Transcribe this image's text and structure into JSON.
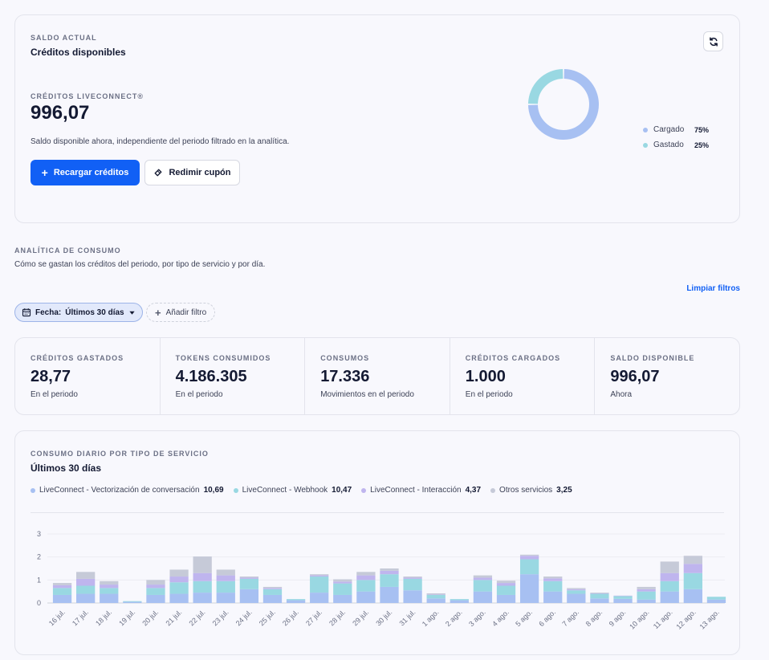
{
  "balance": {
    "overline": "SALDO ACTUAL",
    "title": "Créditos disponibles",
    "credits_label": "CRÉDITOS LIVECONNECT®",
    "credits_value": "996,07",
    "description": "Saldo disponible ahora, independiente del periodo filtrado en la analítica.",
    "recharge_label": "Recargar créditos",
    "coupon_label": "Redimir cupón",
    "donut": [
      {
        "label": "Cargado",
        "pct": "75%",
        "value": 75,
        "color": "#a7c0f2"
      },
      {
        "label": "Gastado",
        "pct": "25%",
        "value": 25,
        "color": "#99d8e2"
      }
    ]
  },
  "analytics": {
    "overline": "ANALÍTICA DE CONSUMO",
    "description": "Cómo se gastan los créditos del periodo, por tipo de servicio y por día.",
    "clear_filters": "Limpiar filtros",
    "date_filter_key": "Fecha:",
    "date_filter_value": "Últimos 30 días",
    "add_filter": "Añadir filtro"
  },
  "stats": [
    {
      "label": "CRÉDITOS GASTADOS",
      "value": "28,77",
      "caption": "En el periodo"
    },
    {
      "label": "TOKENS CONSUMIDOS",
      "value": "4.186.305",
      "caption": "En el periodo"
    },
    {
      "label": "CONSUMOS",
      "value": "17.336",
      "caption": "Movimientos en el periodo"
    },
    {
      "label": "CRÉDITOS CARGADOS",
      "value": "1.000",
      "caption": "En el periodo"
    },
    {
      "label": "SALDO DISPONIBLE",
      "value": "996,07",
      "caption": "Ahora"
    }
  ],
  "chart_card": {
    "overline": "CONSUMO DIARIO POR TIPO DE SERVICIO",
    "title": "Últimos 30 días",
    "legend": [
      {
        "name": "LiveConnect - Vectorización de conversación",
        "total": "10,69",
        "color": "#a7c0f2"
      },
      {
        "name": "LiveConnect - Webhook",
        "total": "10,47",
        "color": "#99d8e2"
      },
      {
        "name": "LiveConnect - Interacción",
        "total": "4,37",
        "color": "#bfb5ee"
      },
      {
        "name": "Otros servicios",
        "total": "3,25",
        "color": "#c6cad8"
      }
    ]
  },
  "chart_data": {
    "type": "bar",
    "stacked": true,
    "categories": [
      "16 jul.",
      "17 jul.",
      "18 jul.",
      "19 jul.",
      "20 jul.",
      "21 jul.",
      "22 jul.",
      "23 jul.",
      "24 jul.",
      "25 jul.",
      "26 jul.",
      "27 jul.",
      "28 jul.",
      "29 jul.",
      "30 jul.",
      "31 jul.",
      "1 ago.",
      "2 ago.",
      "3 ago.",
      "4 ago.",
      "5 ago.",
      "6 ago.",
      "7 ago.",
      "8 ago.",
      "9 ago.",
      "10 ago.",
      "11 ago.",
      "12 ago.",
      "13 ago."
    ],
    "series": [
      {
        "name": "LiveConnect - Vectorización de conversación",
        "color": "#a7c0f2",
        "values": [
          0.35,
          0.4,
          0.4,
          0.05,
          0.35,
          0.4,
          0.45,
          0.45,
          0.6,
          0.35,
          0.12,
          0.45,
          0.35,
          0.5,
          0.7,
          0.55,
          0.2,
          0.12,
          0.5,
          0.35,
          1.25,
          0.5,
          0.4,
          0.2,
          0.18,
          0.15,
          0.5,
          0.6,
          0.15
        ]
      },
      {
        "name": "LiveConnect - Webhook",
        "color": "#99d8e2",
        "values": [
          0.3,
          0.35,
          0.25,
          0.03,
          0.3,
          0.5,
          0.5,
          0.5,
          0.45,
          0.25,
          0.05,
          0.7,
          0.5,
          0.5,
          0.55,
          0.5,
          0.15,
          0.05,
          0.5,
          0.4,
          0.65,
          0.45,
          0.15,
          0.2,
          0.12,
          0.35,
          0.45,
          0.7,
          0.12
        ]
      },
      {
        "name": "LiveConnect - Interacción",
        "color": "#bfb5ee",
        "values": [
          0.12,
          0.3,
          0.15,
          0.0,
          0.15,
          0.25,
          0.35,
          0.25,
          0.05,
          0.05,
          0.0,
          0.05,
          0.08,
          0.2,
          0.15,
          0.05,
          0.02,
          0.0,
          0.1,
          0.12,
          0.15,
          0.12,
          0.05,
          0.02,
          0.02,
          0.1,
          0.35,
          0.4,
          0.0
        ]
      },
      {
        "name": "Otros servicios",
        "color": "#c6cad8",
        "values": [
          0.1,
          0.3,
          0.15,
          0.0,
          0.2,
          0.3,
          0.72,
          0.25,
          0.05,
          0.05,
          0.0,
          0.05,
          0.1,
          0.15,
          0.1,
          0.05,
          0.05,
          0.0,
          0.1,
          0.1,
          0.05,
          0.08,
          0.05,
          0.03,
          0.0,
          0.1,
          0.5,
          0.35,
          0.0
        ]
      }
    ],
    "ylim": [
      0,
      3
    ],
    "yticks": [
      "0",
      "1",
      "2",
      "3"
    ],
    "grid": true
  }
}
